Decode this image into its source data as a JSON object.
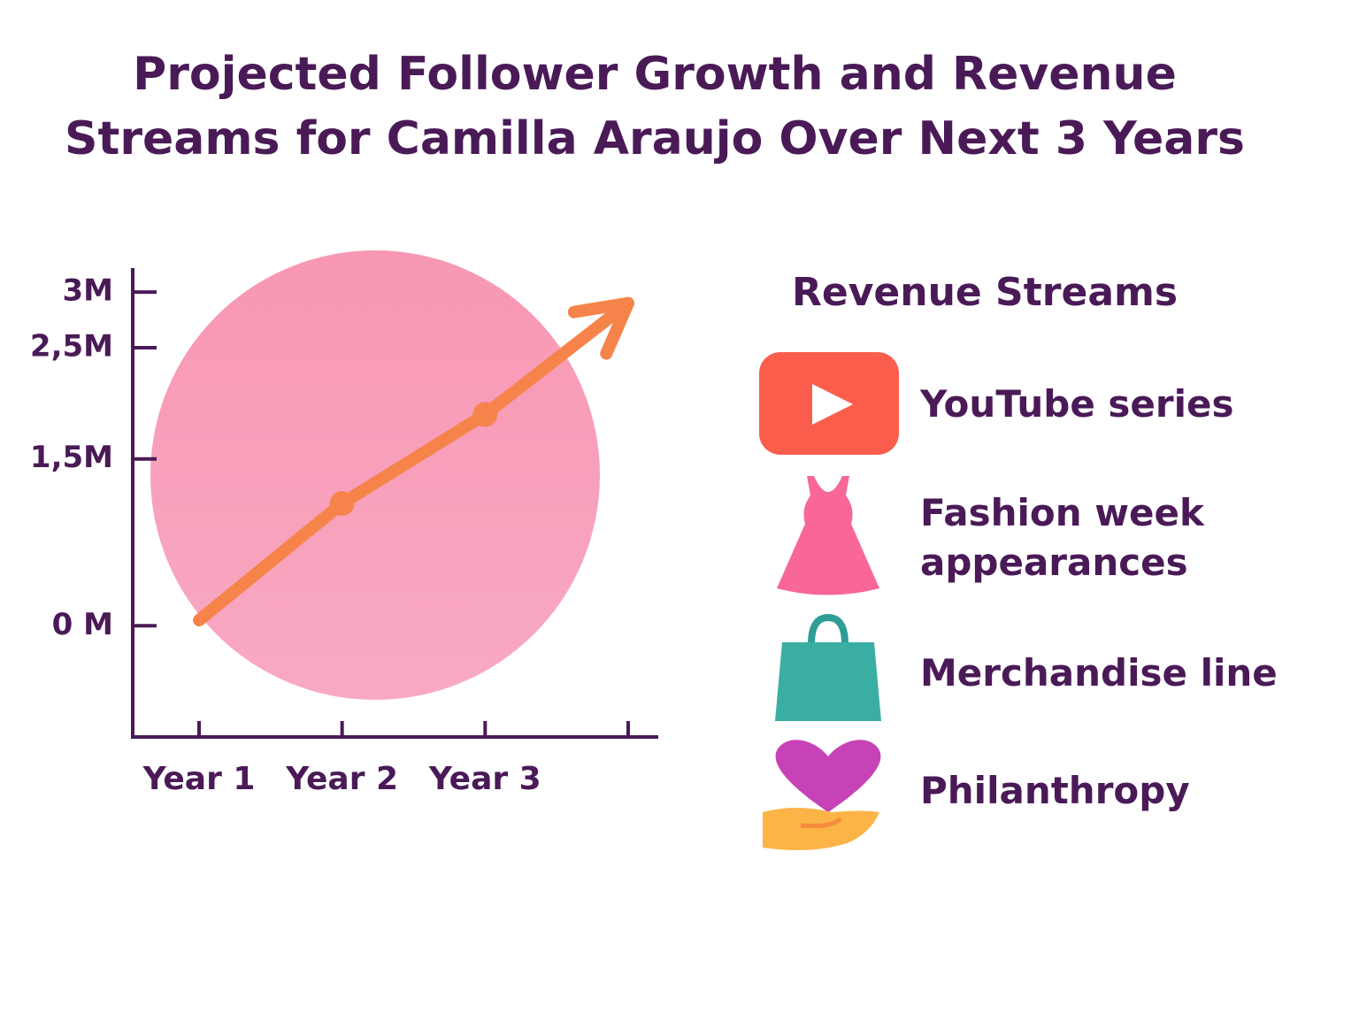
{
  "chart_data": {
    "type": "line",
    "title": "Projected Follower Growth and Revenue Streams for Camilla Araujo Over Next 3 Years",
    "categories": [
      "Year 1",
      "Year 2",
      "Year 3",
      null
    ],
    "values": [
      0.05,
      1.1,
      1.9,
      2.9
    ],
    "color": "#f6844a",
    "ylim": [
      -1,
      3.2
    ],
    "yticks": [
      {
        "value": 0,
        "label": "0 M"
      },
      {
        "value": 1.5,
        "label": "1,5M"
      },
      {
        "value": 2.5,
        "label": "2,5M"
      },
      {
        "value": 3,
        "label": "3M"
      }
    ]
  },
  "revenue_streams": {
    "title": "Revenue Streams",
    "items": [
      "YouTube series",
      "Fashion week appearances",
      "Merchandise line",
      "Philanthropy"
    ]
  }
}
